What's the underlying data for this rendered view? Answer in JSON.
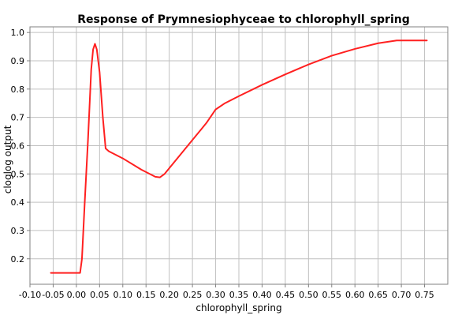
{
  "chart_data": {
    "type": "line",
    "title": "Response of Prymnesiophyceae to chlorophyll_spring",
    "xlabel": "chlorophyll_spring",
    "ylabel": "cloglog output",
    "xlim": [
      -0.1,
      0.8
    ],
    "ylim": [
      0.11,
      1.02
    ],
    "xticks": [
      -0.1,
      -0.05,
      0.0,
      0.05,
      0.1,
      0.15,
      0.2,
      0.25,
      0.3,
      0.35,
      0.4,
      0.45,
      0.5,
      0.55,
      0.6,
      0.65,
      0.7,
      0.75
    ],
    "xtick_labels": [
      "-0.10",
      "-0.05",
      "0.00",
      "0.05",
      "0.10",
      "0.15",
      "0.20",
      "0.25",
      "0.30",
      "0.35",
      "0.40",
      "0.45",
      "0.50",
      "0.55",
      "0.60",
      "0.65",
      "0.70",
      "0.75"
    ],
    "yticks": [
      0.2,
      0.3,
      0.4,
      0.5,
      0.6,
      0.7,
      0.8,
      0.9,
      1.0
    ],
    "ytick_labels": [
      "0.2",
      "0.3",
      "0.4",
      "0.5",
      "0.6",
      "0.7",
      "0.8",
      "0.9",
      "1.0"
    ],
    "grid": true,
    "series": [
      {
        "color": "#ff2020",
        "x": [
          -0.055,
          0.008,
          0.012,
          0.018,
          0.025,
          0.032,
          0.036,
          0.04,
          0.044,
          0.05,
          0.057,
          0.063,
          0.07,
          0.1,
          0.14,
          0.17,
          0.18,
          0.19,
          0.22,
          0.25,
          0.28,
          0.3,
          0.32,
          0.35,
          0.4,
          0.45,
          0.5,
          0.55,
          0.6,
          0.65,
          0.69,
          0.755
        ],
        "y": [
          0.15,
          0.15,
          0.2,
          0.4,
          0.62,
          0.87,
          0.94,
          0.96,
          0.94,
          0.86,
          0.7,
          0.59,
          0.58,
          0.555,
          0.515,
          0.49,
          0.488,
          0.5,
          0.56,
          0.62,
          0.68,
          0.728,
          0.75,
          0.775,
          0.815,
          0.852,
          0.887,
          0.918,
          0.942,
          0.962,
          0.972,
          0.972
        ]
      }
    ]
  }
}
